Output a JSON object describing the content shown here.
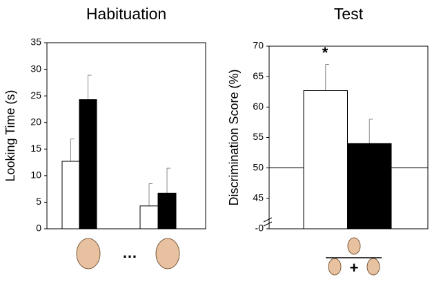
{
  "chart_data": [
    {
      "type": "bar",
      "title": "Habituation",
      "ylabel": "Looking Time (s)",
      "categories": [
        null,
        null
      ],
      "series": [
        {
          "name": null,
          "color": "#ffffff",
          "values": [
            12.7,
            4.3
          ],
          "errors": [
            4.2,
            4.2
          ]
        },
        {
          "name": null,
          "color": "#000000",
          "values": [
            24.3,
            6.7
          ],
          "errors": [
            4.6,
            4.7
          ]
        }
      ],
      "ylim": [
        0,
        35
      ],
      "yticks": [
        0,
        5,
        10,
        15,
        20,
        25,
        30,
        35
      ],
      "annotations": [
        "…"
      ]
    },
    {
      "type": "bar",
      "title": "Test",
      "ylabel": "Discrimination Score (%)",
      "categories": [
        null
      ],
      "series": [
        {
          "name": null,
          "color": "#ffffff",
          "values": [
            62.7
          ],
          "errors": [
            4.3
          ]
        },
        {
          "name": null,
          "color": "#000000",
          "values": [
            54
          ],
          "errors": [
            4.0
          ]
        }
      ],
      "ylim": [
        40,
        70
      ],
      "yticks": [
        {
          "value": 40,
          "label": "-0"
        },
        45,
        50,
        55,
        60,
        65,
        70
      ],
      "reference_line": 50,
      "annotations": [
        "*",
        "+"
      ]
    }
  ]
}
